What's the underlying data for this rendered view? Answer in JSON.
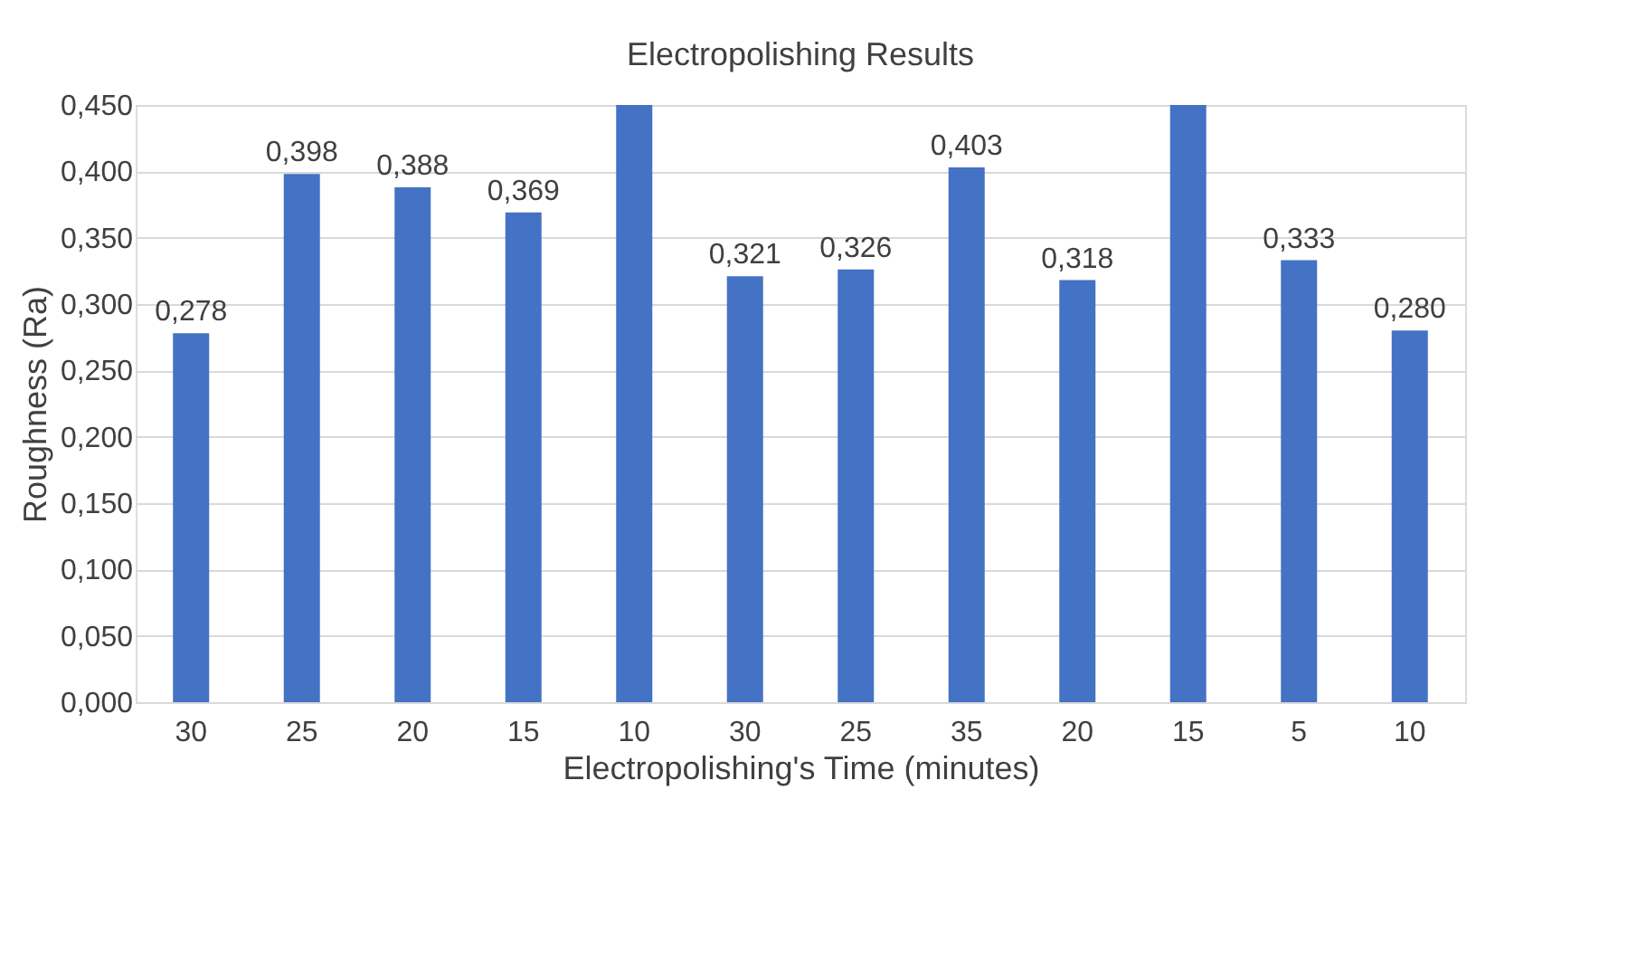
{
  "chart_data": {
    "type": "bar",
    "title": "Electropolishing Results",
    "xlabel": "Electropolishing's Time (minutes)",
    "ylabel": "Roughness (Ra)",
    "categories": [
      "30",
      "25",
      "20",
      "15",
      "10",
      "30",
      "25",
      "35",
      "20",
      "15",
      "5",
      "10"
    ],
    "series": [
      {
        "color": "#4472c4",
        "values": [
          0.278,
          0.398,
          0.388,
          0.369,
          0.45,
          0.321,
          0.326,
          0.403,
          0.318,
          0.45,
          0.333,
          0.28
        ]
      }
    ],
    "value_labels": [
      "0,278",
      "0,398",
      "0,388",
      "0,369",
      null,
      "0,321",
      "0,326",
      "0,403",
      "0,318",
      null,
      "0,333",
      "0,280"
    ],
    "ylim": [
      0,
      0.45
    ],
    "yticks": [
      {
        "value": 0,
        "label": "0,000"
      },
      {
        "value": 0.05,
        "label": "0,050"
      },
      {
        "value": 0.1,
        "label": "0,100"
      },
      {
        "value": 0.15,
        "label": "0,150"
      },
      {
        "value": 0.2,
        "label": "0,200"
      },
      {
        "value": 0.25,
        "label": "0,250"
      },
      {
        "value": 0.3,
        "label": "0,300"
      },
      {
        "value": 0.35,
        "label": "0,350"
      },
      {
        "value": 0.4,
        "label": "0,400"
      },
      {
        "value": 0.45,
        "label": "0,450"
      }
    ],
    "grid": "y"
  }
}
